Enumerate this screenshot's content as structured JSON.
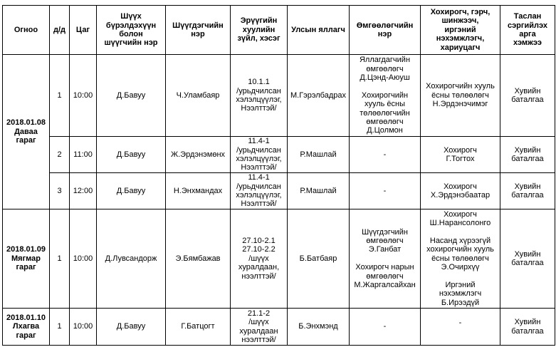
{
  "headers": [
    "Огноо",
    "д/д",
    "Цаг",
    "Шүүх\nбүрэлдэхүүн\nболон\nшүүгчийн нэр",
    "Шүүгдэгчийн\nнэр",
    "Эрүүгийн\nхуулийн\nзүйл, хэсэг",
    "Улсын яллагч",
    "Өмгөөлөгчийн\nнэр",
    "Хохирогч, гэрч,\nшинжээч,\nиргэний\nнэхэмжлэгч,\nхариуцагч",
    "Таслан\nсэргийлэх\nарга\nхэмжээ"
  ],
  "groups": [
    {
      "date": "2018.01.08\nДаваа\nгараг",
      "rows": [
        {
          "no": "1",
          "time": "10:00",
          "judge": "Д.Бавуу",
          "defendant": "Ч.Уламбаяр",
          "article": "10.1.1\n/урьдчилсан\nхэлэлцүүлэг,\nНээлттэй/",
          "prosecutor": "М.Гэрэлбадрах",
          "lawyer": "Яллагдагчийн\nөмгөөлөгч\nД.Цэнд-Аюуш\n\nХохирогчийн\nхууль ёсны\nтөлөөлөгчийн\nөмгөөлөгч\nД.Цолмон",
          "parties": "Хохирогчийн хууль\nёсны төлөөлөгч\nН.Эрдэнэчимэг",
          "measure": "Хувийн\nбаталгаа"
        },
        {
          "no": "2",
          "time": "11:00",
          "judge": "Д.Бавуу",
          "defendant": "Ж.Эрдэнэмөнх",
          "article": "11.4-1\n/урьдчилсан\nхэлэлцүүлэг,\nНээлттэй/",
          "prosecutor": "Р.Машлай",
          "lawyer": "-",
          "parties": "Хохирогч\nГ.Тогтох",
          "measure": "Хувийн\nбаталгаа"
        },
        {
          "no": "3",
          "time": "12:00",
          "judge": "Д.Бавуу",
          "defendant": "Н.Энхмандах",
          "article": "11.4-1\n/урьдчилсан\nхэлэлцүүлэг,\nНээлттэй/",
          "prosecutor": "Р.Машлай",
          "lawyer": "-",
          "parties": "Хохирогч\nХ.Эрдэнэбаатар",
          "measure": "Хувийн\nбаталгаа"
        }
      ]
    },
    {
      "date": "2018.01.09\nМягмар\nгараг",
      "rows": [
        {
          "no": "1",
          "time": "10:00",
          "judge": "Д.Лувсандорж",
          "defendant": "Э.Бямбажав",
          "article": "27.10-2.1\n27.10-2.2\n/шүүх\nхуралдаан,\nнээлттэй/",
          "prosecutor": "Б.Батбаяр",
          "lawyer": "Шүүгдэгчийн\nөмгөөлөгч\nЭ.Ганбат\n\nХохирогч нарын\nөмгөөлөгч\nМ.Жаргалсайхан",
          "parties": "Хохирогч\nШ.Нарансолонго\n\nНасанд хүрээгүй\nхохирогчийн хууль\nёсны төлөөлөгч\nЭ.Очирхүү\n\nИргэний\nнэхэмжлэгч\nБ.Ирээдүй",
          "measure": "Хувийн\nбаталгаа"
        }
      ]
    },
    {
      "date": "2018.01.10\nЛхагва\nгараг",
      "rows": [
        {
          "no": "1",
          "time": "10:00",
          "judge": "Д.Бавуу",
          "defendant": "Г.Батцогт",
          "article": "21.1-2\n/шүүх\nхуралдаан\nнээлттэй/",
          "prosecutor": "Б.Энхмэнд",
          "lawyer": "-",
          "parties": "-",
          "measure": "Хувийн\nбаталгаа"
        }
      ]
    }
  ]
}
